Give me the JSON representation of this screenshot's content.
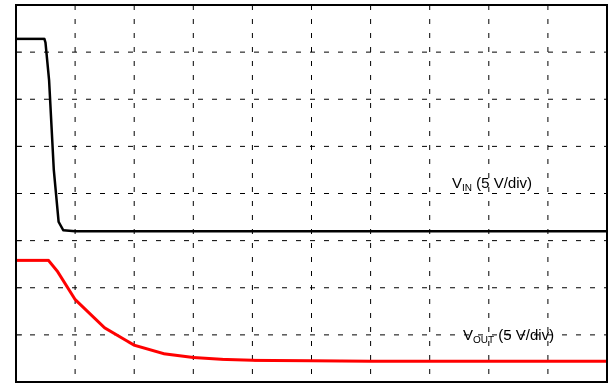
{
  "chart_data": {
    "type": "line",
    "title": "",
    "xlabel": "",
    "ylabel": "",
    "grid": true,
    "grid_divisions": {
      "x": 10,
      "y": 8
    },
    "xlim": [
      0,
      10
    ],
    "ylim": [
      0,
      8
    ],
    "series": [
      {
        "name": "VIN (5 V/div)",
        "label_main": "V",
        "label_sub": "IN",
        "label_rest": " (5 V/div)",
        "color": "#000000",
        "x": [
          0,
          0.48,
          0.5,
          0.56,
          0.64,
          0.72,
          0.8,
          1.0,
          2.0,
          4.0,
          6.0,
          8.0,
          10.0
        ],
        "y": [
          7.28,
          7.28,
          7.2,
          6.4,
          4.5,
          3.4,
          3.22,
          3.2,
          3.2,
          3.2,
          3.2,
          3.2,
          3.2
        ]
      },
      {
        "name": "VOUT (5 V/div)",
        "label_main": "V",
        "label_sub": "OUT",
        "label_rest": " (5 V/div)",
        "color": "#ff0000",
        "x": [
          0,
          0.55,
          0.7,
          1.0,
          1.5,
          2.0,
          2.5,
          3.0,
          3.5,
          4.0,
          5.0,
          6.0,
          8.0,
          10.0
        ],
        "y": [
          2.58,
          2.58,
          2.35,
          1.75,
          1.15,
          0.78,
          0.6,
          0.52,
          0.48,
          0.46,
          0.45,
          0.44,
          0.44,
          0.44
        ]
      }
    ]
  }
}
